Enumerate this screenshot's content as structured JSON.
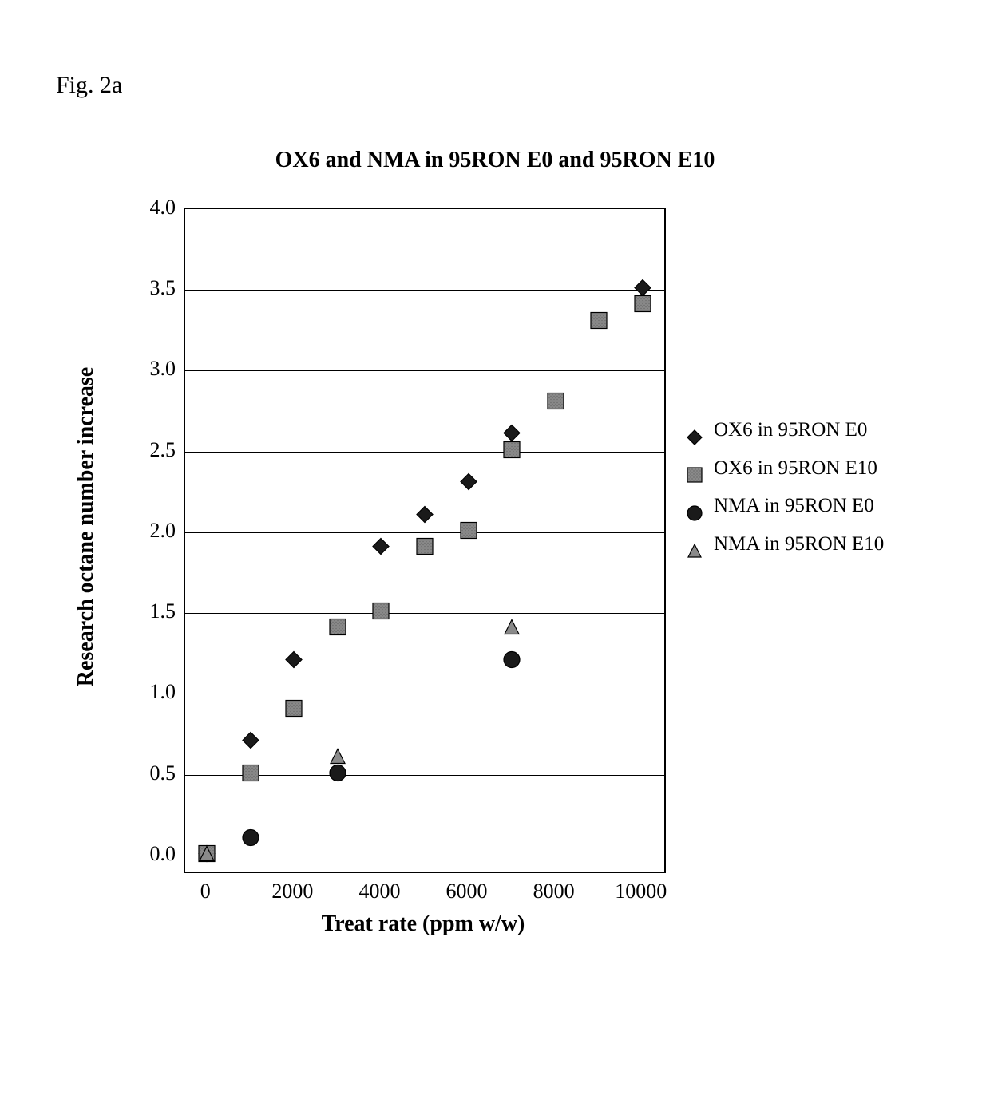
{
  "figure_label": "Fig. 2a",
  "chart": {
    "type": "scatter",
    "title": "OX6 and NMA in 95RON E0 and 95RON E10",
    "title_fontsize": 28,
    "title_fontweight": "bold",
    "xlabel": "Treat rate (ppm w/w)",
    "ylabel": "Research octane number increase",
    "label_fontsize": 28,
    "label_fontweight": "bold",
    "xlim": [
      -500,
      10500
    ],
    "ylim": [
      -0.1,
      4.0
    ],
    "xticks": [
      0,
      2000,
      4000,
      6000,
      8000,
      10000
    ],
    "yticks": [
      0.0,
      0.5,
      1.0,
      1.5,
      2.0,
      2.5,
      3.0,
      3.5,
      4.0
    ],
    "ytick_labels": [
      "0.0",
      "0.5",
      "1.0",
      "1.5",
      "2.0",
      "2.5",
      "3.0",
      "3.5",
      "4.0"
    ],
    "tick_fontsize": 26,
    "grid_color": "#000000",
    "background_color": "#ffffff",
    "border_color": "#000000",
    "marker_size": 22,
    "marker_stroke": "#000000",
    "marker_stroke_width": 1.2,
    "series": [
      {
        "label": "OX6 in 95RON E0",
        "marker": "diamond",
        "fill": "#1a1a1a",
        "data": [
          [
            0,
            0.0
          ],
          [
            1000,
            0.7
          ],
          [
            2000,
            1.2
          ],
          [
            4000,
            1.9
          ],
          [
            5000,
            2.1
          ],
          [
            6000,
            2.3
          ],
          [
            7000,
            2.6
          ],
          [
            10000,
            3.5
          ]
        ]
      },
      {
        "label": "OX6 in 95RON E10",
        "marker": "square-hatched",
        "fill": "#8a8a8a",
        "inner_pattern": "#707070",
        "data": [
          [
            0,
            0.0
          ],
          [
            1000,
            0.5
          ],
          [
            2000,
            0.9
          ],
          [
            3000,
            1.4
          ],
          [
            4000,
            1.5
          ],
          [
            5000,
            1.9
          ],
          [
            6000,
            2.0
          ],
          [
            7000,
            2.5
          ],
          [
            8000,
            2.8
          ],
          [
            9000,
            3.3
          ],
          [
            10000,
            3.4
          ]
        ]
      },
      {
        "label": "NMA in 95RON E0",
        "marker": "circle",
        "fill": "#1a1a1a",
        "data": [
          [
            1000,
            0.1
          ],
          [
            3000,
            0.5
          ],
          [
            7000,
            1.2
          ]
        ]
      },
      {
        "label": "NMA in 95RON E10",
        "marker": "triangle",
        "fill": "#8a8a8a",
        "data": [
          [
            0,
            0.0
          ],
          [
            3000,
            0.6
          ],
          [
            7000,
            1.4
          ]
        ]
      }
    ]
  }
}
